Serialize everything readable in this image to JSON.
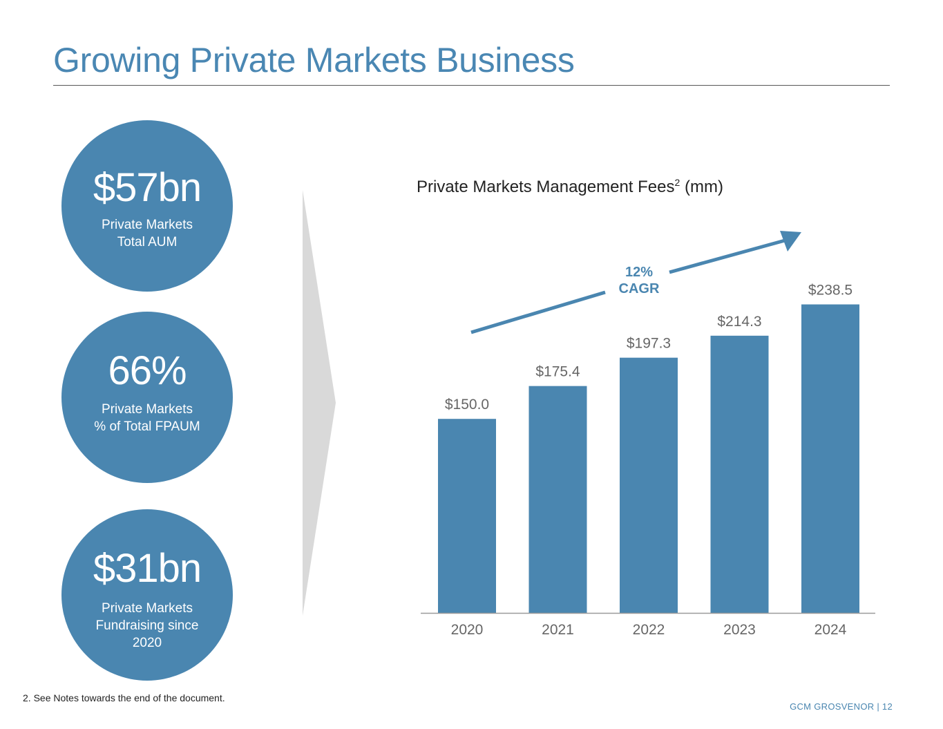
{
  "page": {
    "title": "Growing Private Markets Business",
    "footnote": "2. See Notes towards the end of the document.",
    "footer": "GCM GROSVENOR | 12"
  },
  "stats": [
    {
      "value": "$57bn",
      "label_lines": [
        "Private Markets",
        "Total AUM"
      ]
    },
    {
      "value": "66%",
      "label_lines": [
        "Private Markets",
        "% of Total FPAUM"
      ]
    },
    {
      "value": "$31bn",
      "label_lines": [
        "Private Markets",
        "Fundraising since",
        "2020"
      ]
    }
  ],
  "colors": {
    "title": "#4a87b3",
    "bar": "#4a86b0",
    "circle": "#4a86b0",
    "data_label": "#666666",
    "chevron": "#d9d9d9"
  },
  "chart_data": {
    "type": "bar",
    "title": "Private Markets Management Fees",
    "title_superscript": "2",
    "title_suffix": "(mm)",
    "categories": [
      "2020",
      "2021",
      "2022",
      "2023",
      "2024"
    ],
    "values": [
      150.0,
      175.4,
      197.3,
      214.3,
      238.5
    ],
    "data_labels": [
      "$150.0",
      "$175.4",
      "$197.3",
      "$214.3",
      "$238.5"
    ],
    "annotation": {
      "lines": [
        "12%",
        "CAGR"
      ]
    },
    "ylim": [
      0,
      280
    ],
    "grid": false,
    "legend": false
  }
}
